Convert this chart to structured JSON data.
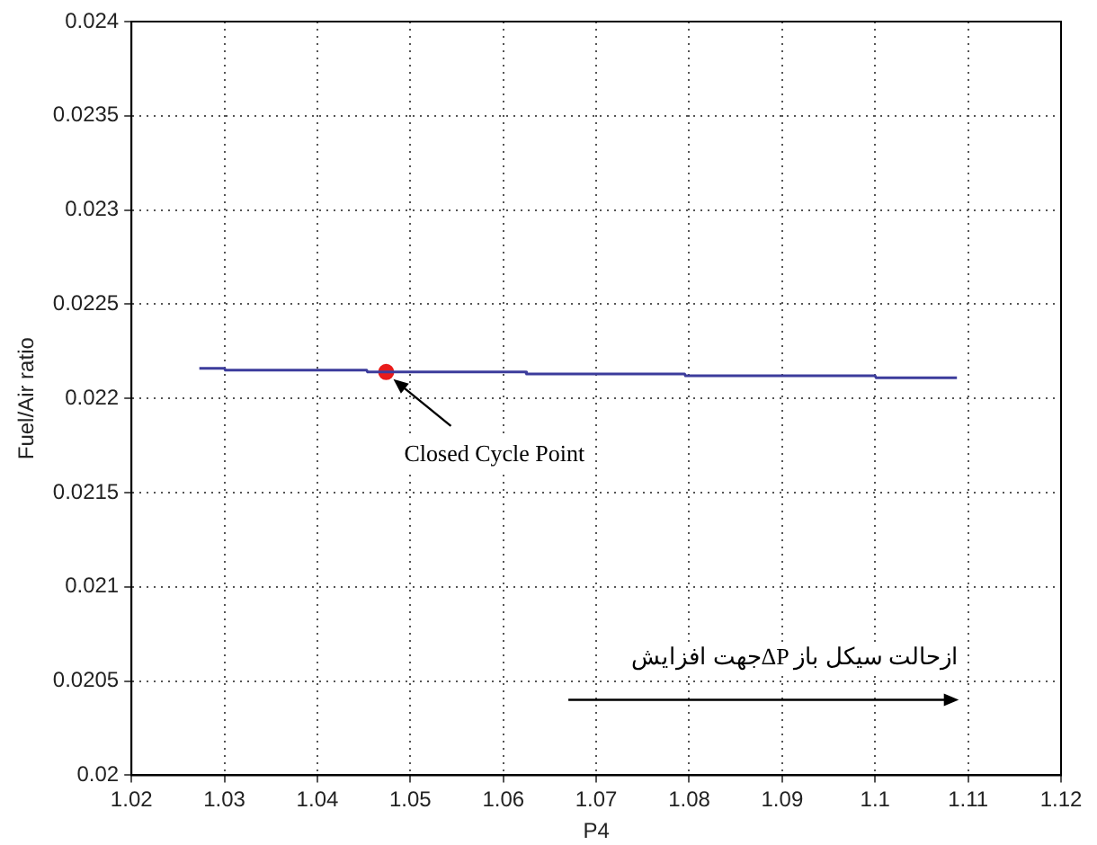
{
  "chart_data": {
    "type": "line",
    "xlabel": "P4",
    "ylabel": "Fuel/Air ratio",
    "xlim": [
      1.02,
      1.12
    ],
    "xticks": [
      1.02,
      1.03,
      1.04,
      1.05,
      1.06,
      1.07,
      1.08,
      1.09,
      1.1,
      1.11,
      1.12
    ],
    "ylim": [
      0.02,
      0.024
    ],
    "yticks": [
      0.02,
      0.0205,
      0.021,
      0.0215,
      0.022,
      0.0225,
      0.023,
      0.0235,
      0.024
    ],
    "grid": true,
    "marker": "none",
    "series": [
      {
        "color": "#3c3c9c",
        "x": [
          1.0273,
          1.03,
          1.0301,
          1.0453,
          1.0454,
          1.0624,
          1.0625,
          1.0795,
          1.0796,
          1.1,
          1.1001,
          1.1088
        ],
        "values": [
          0.02216,
          0.02216,
          0.02215,
          0.02215,
          0.02214,
          0.02214,
          0.02213,
          0.02213,
          0.02212,
          0.02212,
          0.02211,
          0.02211
        ]
      },
      {
        "type": "scatter",
        "color": "#e81c1c",
        "marker": "circle",
        "x": [
          1.0474
        ],
        "values": [
          0.02214
        ]
      }
    ],
    "annotations": [
      {
        "text": "Closed Cycle Point",
        "x": 1.0474,
        "y": 0.02214
      },
      "جهت افزایشΔP ازحالت سیکل باز"
    ]
  }
}
